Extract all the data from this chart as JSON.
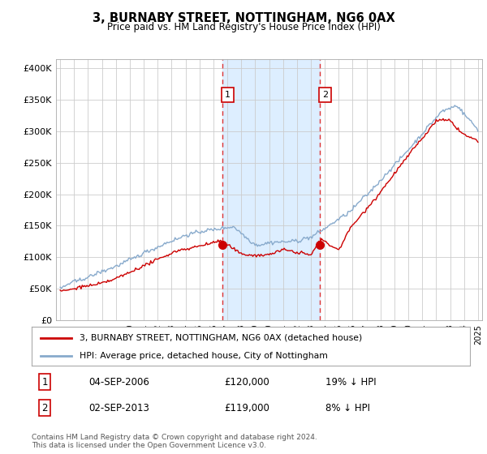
{
  "title": "3, BURNABY STREET, NOTTINGHAM, NG6 0AX",
  "subtitle": "Price paid vs. HM Land Registry's House Price Index (HPI)",
  "legend_line1": "3, BURNABY STREET, NOTTINGHAM, NG6 0AX (detached house)",
  "legend_line2": "HPI: Average price, detached house, City of Nottingham",
  "sale1_date": "04-SEP-2006",
  "sale1_price": "£120,000",
  "sale1_hpi": "19% ↓ HPI",
  "sale2_date": "02-SEP-2013",
  "sale2_price": "£119,000",
  "sale2_hpi": "8% ↓ HPI",
  "sale1_year": 2006.67,
  "sale1_value": 120000,
  "sale2_year": 2013.67,
  "sale2_value": 119000,
  "footer": "Contains HM Land Registry data © Crown copyright and database right 2024.\nThis data is licensed under the Open Government Licence v3.0.",
  "ylim": [
    0,
    415000
  ],
  "yticks": [
    0,
    50000,
    100000,
    150000,
    200000,
    250000,
    300000,
    350000,
    400000
  ],
  "ytick_labels": [
    "£0",
    "£50K",
    "£100K",
    "£150K",
    "£200K",
    "£250K",
    "£300K",
    "£350K",
    "£400K"
  ],
  "line_color_red": "#cc0000",
  "line_color_blue": "#88aacc",
  "shade_color": "#ddeeff",
  "vline_color": "#dd3333",
  "box_color": "#cc0000",
  "grid_color": "#cccccc"
}
